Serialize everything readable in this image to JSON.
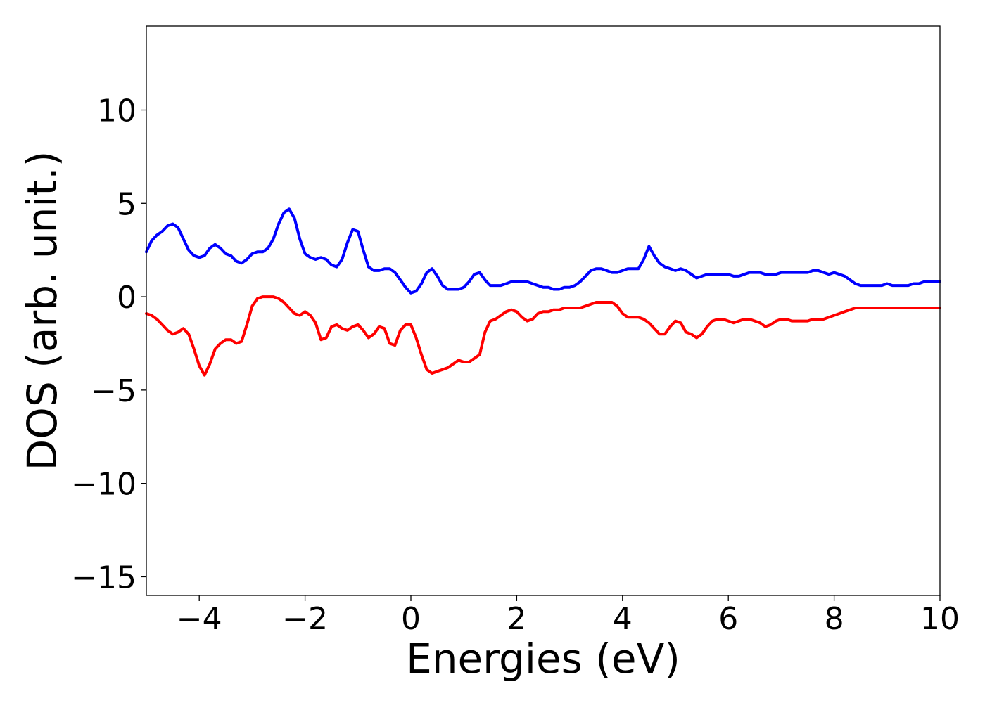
{
  "chart_data": {
    "type": "line",
    "xlabel": "Energies (eV)",
    "ylabel": "DOS (arb. unit.)",
    "xlim": [
      -5,
      10
    ],
    "ylim": [
      -16,
      14.5
    ],
    "x_ticks": [
      {
        "value": -4,
        "label": "−4"
      },
      {
        "value": -2,
        "label": "−2"
      },
      {
        "value": 0,
        "label": "0"
      },
      {
        "value": 2,
        "label": "2"
      },
      {
        "value": 4,
        "label": "4"
      },
      {
        "value": 6,
        "label": "6"
      },
      {
        "value": 8,
        "label": "8"
      },
      {
        "value": 10,
        "label": "10"
      }
    ],
    "y_ticks": [
      {
        "value": -15,
        "label": "−15"
      },
      {
        "value": -10,
        "label": "−10"
      },
      {
        "value": -5,
        "label": "−5"
      },
      {
        "value": 0,
        "label": "0"
      },
      {
        "value": 5,
        "label": "5"
      },
      {
        "value": 10,
        "label": "10"
      }
    ],
    "grid": false,
    "legend": "none",
    "series": [
      {
        "color": "#0000ff",
        "x": [
          -5.0,
          -4.9,
          -4.8,
          -4.7,
          -4.6,
          -4.5,
          -4.4,
          -4.3,
          -4.2,
          -4.1,
          -4.0,
          -3.9,
          -3.8,
          -3.7,
          -3.6,
          -3.5,
          -3.4,
          -3.3,
          -3.2,
          -3.1,
          -3.0,
          -2.9,
          -2.8,
          -2.7,
          -2.6,
          -2.5,
          -2.4,
          -2.3,
          -2.2,
          -2.1,
          -2.0,
          -1.9,
          -1.8,
          -1.7,
          -1.6,
          -1.5,
          -1.4,
          -1.3,
          -1.2,
          -1.1,
          -1.0,
          -0.9,
          -0.8,
          -0.7,
          -0.6,
          -0.5,
          -0.4,
          -0.3,
          -0.2,
          -0.1,
          0.0,
          0.1,
          0.2,
          0.3,
          0.4,
          0.5,
          0.6,
          0.7,
          0.8,
          0.9,
          1.0,
          1.1,
          1.2,
          1.3,
          1.4,
          1.5,
          1.6,
          1.7,
          1.8,
          1.9,
          2.0,
          2.1,
          2.2,
          2.3,
          2.4,
          2.5,
          2.6,
          2.7,
          2.8,
          2.9,
          3.0,
          3.1,
          3.2,
          3.3,
          3.4,
          3.5,
          3.6,
          3.7,
          3.8,
          3.9,
          4.0,
          4.1,
          4.2,
          4.3,
          4.4,
          4.5,
          4.6,
          4.7,
          4.8,
          4.9,
          5.0,
          5.1,
          5.2,
          5.3,
          5.4,
          5.5,
          5.6,
          5.7,
          5.8,
          5.9,
          6.0,
          6.1,
          6.2,
          6.3,
          6.4,
          6.5,
          6.6,
          6.7,
          6.8,
          6.9,
          7.0,
          7.1,
          7.2,
          7.3,
          7.4,
          7.5,
          7.6,
          7.7,
          7.8,
          7.9,
          8.0,
          8.1,
          8.2,
          8.3,
          8.4,
          8.5,
          8.6,
          8.7,
          8.8,
          8.9,
          9.0,
          9.1,
          9.2,
          9.3,
          9.4,
          9.5,
          9.6,
          9.7,
          9.8,
          9.9,
          10.0
        ],
        "y": [
          2.4,
          3.0,
          3.3,
          3.5,
          3.8,
          3.9,
          3.7,
          3.1,
          2.5,
          2.2,
          2.1,
          2.2,
          2.6,
          2.8,
          2.6,
          2.3,
          2.2,
          1.9,
          1.8,
          2.0,
          2.3,
          2.4,
          2.4,
          2.6,
          3.1,
          3.9,
          4.5,
          4.7,
          4.2,
          3.1,
          2.3,
          2.1,
          2.0,
          2.1,
          2.0,
          1.7,
          1.6,
          2.0,
          2.9,
          3.6,
          3.5,
          2.5,
          1.6,
          1.4,
          1.4,
          1.5,
          1.5,
          1.3,
          0.9,
          0.5,
          0.2,
          0.3,
          0.7,
          1.3,
          1.5,
          1.1,
          0.6,
          0.4,
          0.4,
          0.4,
          0.5,
          0.8,
          1.2,
          1.3,
          0.9,
          0.6,
          0.6,
          0.6,
          0.7,
          0.8,
          0.8,
          0.8,
          0.8,
          0.7,
          0.6,
          0.5,
          0.5,
          0.4,
          0.4,
          0.5,
          0.5,
          0.6,
          0.8,
          1.1,
          1.4,
          1.5,
          1.5,
          1.4,
          1.3,
          1.3,
          1.4,
          1.5,
          1.5,
          1.5,
          2.0,
          2.7,
          2.2,
          1.8,
          1.6,
          1.5,
          1.4,
          1.5,
          1.4,
          1.2,
          1.0,
          1.1,
          1.2,
          1.2,
          1.2,
          1.2,
          1.2,
          1.1,
          1.1,
          1.2,
          1.3,
          1.3,
          1.3,
          1.2,
          1.2,
          1.2,
          1.3,
          1.3,
          1.3,
          1.3,
          1.3,
          1.3,
          1.4,
          1.4,
          1.3,
          1.2,
          1.3,
          1.2,
          1.1,
          0.9,
          0.7,
          0.6,
          0.6,
          0.6,
          0.6,
          0.6,
          0.7,
          0.6,
          0.6,
          0.6,
          0.6,
          0.7,
          0.7,
          0.8,
          0.8,
          0.8,
          0.8
        ]
      },
      {
        "color": "#ff0000",
        "x": [
          -5.0,
          -4.9,
          -4.8,
          -4.7,
          -4.6,
          -4.5,
          -4.4,
          -4.3,
          -4.2,
          -4.1,
          -4.0,
          -3.9,
          -3.8,
          -3.7,
          -3.6,
          -3.5,
          -3.4,
          -3.3,
          -3.2,
          -3.1,
          -3.0,
          -2.9,
          -2.8,
          -2.7,
          -2.6,
          -2.5,
          -2.4,
          -2.3,
          -2.2,
          -2.1,
          -2.0,
          -1.9,
          -1.8,
          -1.7,
          -1.6,
          -1.5,
          -1.4,
          -1.3,
          -1.2,
          -1.1,
          -1.0,
          -0.9,
          -0.8,
          -0.7,
          -0.6,
          -0.5,
          -0.4,
          -0.3,
          -0.2,
          -0.1,
          0.0,
          0.1,
          0.2,
          0.3,
          0.4,
          0.5,
          0.6,
          0.7,
          0.8,
          0.9,
          1.0,
          1.1,
          1.2,
          1.3,
          1.4,
          1.5,
          1.6,
          1.7,
          1.8,
          1.9,
          2.0,
          2.1,
          2.2,
          2.3,
          2.4,
          2.5,
          2.6,
          2.7,
          2.8,
          2.9,
          3.0,
          3.1,
          3.2,
          3.3,
          3.4,
          3.5,
          3.6,
          3.7,
          3.8,
          3.9,
          4.0,
          4.1,
          4.2,
          4.3,
          4.4,
          4.5,
          4.6,
          4.7,
          4.8,
          4.9,
          5.0,
          5.1,
          5.2,
          5.3,
          5.4,
          5.5,
          5.6,
          5.7,
          5.8,
          5.9,
          6.0,
          6.1,
          6.2,
          6.3,
          6.4,
          6.5,
          6.6,
          6.7,
          6.8,
          6.9,
          7.0,
          7.1,
          7.2,
          7.3,
          7.4,
          7.5,
          7.6,
          7.7,
          7.8,
          7.9,
          8.0,
          8.1,
          8.2,
          8.3,
          8.4,
          8.5,
          8.6,
          8.7,
          8.8,
          8.9,
          9.0,
          9.1,
          9.2,
          9.3,
          9.4,
          9.5,
          9.6,
          9.7,
          9.8,
          9.9,
          10.0
        ],
        "y": [
          -0.9,
          -1.0,
          -1.2,
          -1.5,
          -1.8,
          -2.0,
          -1.9,
          -1.7,
          -2.0,
          -2.8,
          -3.7,
          -4.2,
          -3.6,
          -2.8,
          -2.5,
          -2.3,
          -2.3,
          -2.5,
          -2.4,
          -1.5,
          -0.5,
          -0.1,
          0.0,
          0.0,
          0.0,
          -0.1,
          -0.3,
          -0.6,
          -0.9,
          -1.0,
          -0.8,
          -1.0,
          -1.4,
          -2.3,
          -2.2,
          -1.6,
          -1.5,
          -1.7,
          -1.8,
          -1.6,
          -1.5,
          -1.8,
          -2.2,
          -2.0,
          -1.6,
          -1.7,
          -2.5,
          -2.6,
          -1.8,
          -1.5,
          -1.5,
          -2.2,
          -3.1,
          -3.9,
          -4.1,
          -4.0,
          -3.9,
          -3.8,
          -3.6,
          -3.4,
          -3.5,
          -3.5,
          -3.3,
          -3.1,
          -1.9,
          -1.3,
          -1.2,
          -1.0,
          -0.8,
          -0.7,
          -0.8,
          -1.1,
          -1.3,
          -1.2,
          -0.9,
          -0.8,
          -0.8,
          -0.7,
          -0.7,
          -0.6,
          -0.6,
          -0.6,
          -0.6,
          -0.5,
          -0.4,
          -0.3,
          -0.3,
          -0.3,
          -0.3,
          -0.5,
          -0.9,
          -1.1,
          -1.1,
          -1.1,
          -1.2,
          -1.4,
          -1.7,
          -2.0,
          -2.0,
          -1.6,
          -1.3,
          -1.4,
          -1.9,
          -2.0,
          -2.2,
          -2.0,
          -1.6,
          -1.3,
          -1.2,
          -1.2,
          -1.3,
          -1.4,
          -1.3,
          -1.2,
          -1.2,
          -1.3,
          -1.4,
          -1.6,
          -1.5,
          -1.3,
          -1.2,
          -1.2,
          -1.3,
          -1.3,
          -1.3,
          -1.3,
          -1.2,
          -1.2,
          -1.2,
          -1.1,
          -1.0,
          -0.9,
          -0.8,
          -0.7,
          -0.6,
          -0.6,
          -0.6,
          -0.6,
          -0.6,
          -0.6,
          -0.6,
          -0.6,
          -0.6,
          -0.6,
          -0.6,
          -0.6,
          -0.6,
          -0.6,
          -0.6,
          -0.6,
          -0.6
        ]
      }
    ]
  }
}
